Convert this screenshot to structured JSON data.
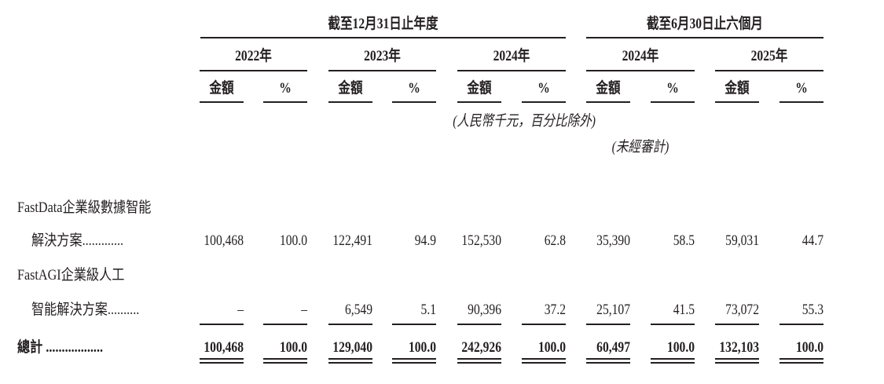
{
  "header": {
    "group_annual": "截至12月31日止年度",
    "group_interim": "截至6月30日止六個月",
    "years": [
      "2022年",
      "2023年",
      "2024年",
      "2024年",
      "2025年"
    ],
    "amount_label": "金額",
    "percent_label": "%",
    "unit_note": "(人民幣千元，百分比除外)",
    "unaudited_note": "(未經審計)"
  },
  "rows": [
    {
      "label_line1": "FastData企業級數據智能",
      "label_line2": "解決方案.............",
      "values": [
        "100,468",
        "100.0",
        "122,491",
        "94.9",
        "152,530",
        "62.8",
        "35,390",
        "58.5",
        "59,031",
        "44.7"
      ]
    },
    {
      "label_line1": "FastAGI企業級人工",
      "label_line2": "智能解決方案..........",
      "values": [
        "–",
        "–",
        "6,549",
        "5.1",
        "90,396",
        "37.2",
        "25,107",
        "41.5",
        "73,072",
        "55.3"
      ]
    }
  ],
  "total": {
    "label": "總計 ..................",
    "values": [
      "100,468",
      "100.0",
      "129,040",
      "100.0",
      "242,926",
      "100.0",
      "60,497",
      "100.0",
      "132,103",
      "100.0"
    ]
  }
}
